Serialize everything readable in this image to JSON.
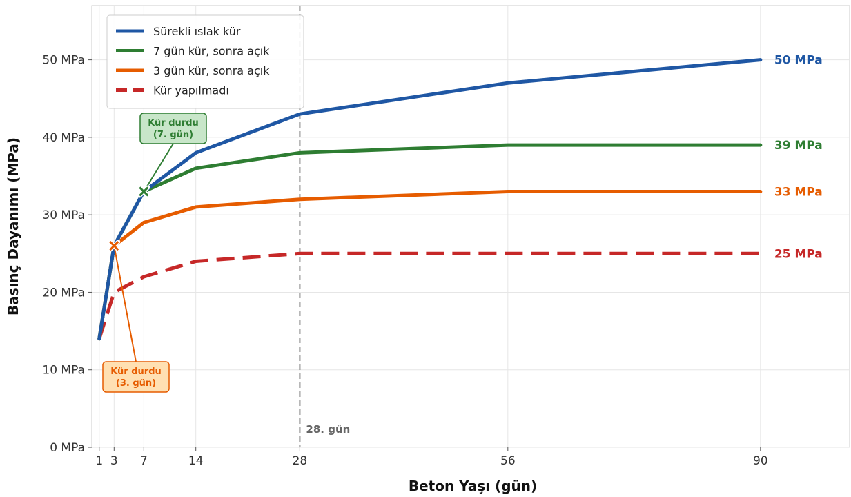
{
  "chart_data": {
    "type": "line",
    "xlabel": "Beton Yaşı (gün)",
    "ylabel": "Basınç Dayanımı (MPa)",
    "xlim": [
      0,
      102
    ],
    "ylim": [
      0,
      57
    ],
    "x_ticks": [
      1,
      3,
      7,
      14,
      28,
      56,
      90
    ],
    "y_ticks": [
      0,
      10,
      20,
      30,
      40,
      50
    ],
    "y_tick_labels": [
      "0 MPa",
      "10 MPa",
      "20 MPa",
      "30 MPa",
      "40 MPa",
      "50 MPa"
    ],
    "grid": true,
    "legend_position": "top-left",
    "series": [
      {
        "name": "Sürekli ıslak kür",
        "color": "#1f57a4",
        "dash": "solid",
        "x": [
          1,
          3,
          7,
          14,
          28,
          56,
          90
        ],
        "y": [
          14,
          26,
          33,
          38,
          43,
          47,
          50
        ],
        "end_label": "50 MPa"
      },
      {
        "name": "7 gün kür, sonra açık",
        "color": "#2e7d32",
        "dash": "solid",
        "x": [
          1,
          3,
          7,
          14,
          28,
          56,
          90
        ],
        "y": [
          14,
          26,
          33,
          36,
          38,
          39,
          39
        ],
        "end_label": "39 MPa"
      },
      {
        "name": "3 gün kür, sonra açık",
        "color": "#e65c00",
        "dash": "solid",
        "x": [
          1,
          3,
          7,
          14,
          28,
          56,
          90
        ],
        "y": [
          14,
          26,
          29,
          31,
          32,
          33,
          33
        ],
        "end_label": "33 MPa"
      },
      {
        "name": "Kür yapılmadı",
        "color": "#c62828",
        "dash": "dashed",
        "x": [
          1,
          3,
          7,
          14,
          28,
          56,
          90
        ],
        "y": [
          14,
          20,
          22,
          24,
          25,
          25,
          25
        ],
        "end_label": "25 MPa"
      }
    ],
    "reference_line": {
      "x": 28,
      "label": "28. gün"
    },
    "annotations": [
      {
        "lines": [
          "Kür durdu",
          "(7. gün)"
        ],
        "x": 7,
        "y": 33,
        "color": "#2e7d32",
        "fill": "#c8e6c9",
        "placement": "above"
      },
      {
        "lines": [
          "Kür durdu",
          "(3. gün)"
        ],
        "x": 3,
        "y": 26,
        "color": "#e65c00",
        "fill": "#ffe0b2",
        "placement": "below"
      }
    ]
  }
}
